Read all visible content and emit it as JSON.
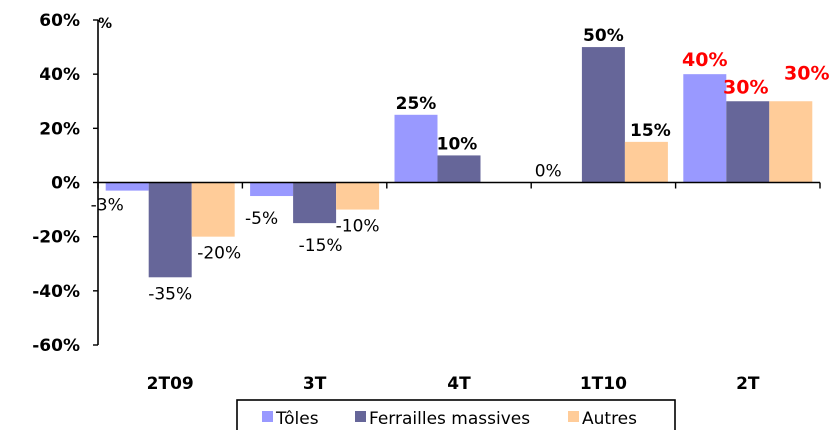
{
  "chart_data": {
    "type": "bar",
    "ylabel": "%",
    "ylim": [
      -60,
      60
    ],
    "yticks": [
      60,
      40,
      20,
      0,
      -20,
      -40,
      -60
    ],
    "ytick_labels": [
      "60%",
      "40%",
      "20%",
      "0%",
      "-20%",
      "-40%",
      "-60%"
    ],
    "grid": false,
    "legend_position": "bottom",
    "categories": [
      "2T09",
      "3T",
      "4T",
      "1T10",
      "2T"
    ],
    "series": [
      {
        "name": "Tôles",
        "color": "#9999FF",
        "values": [
          -3,
          -5,
          25,
          0,
          40
        ],
        "labels": [
          "-3%",
          "-5%",
          "25%",
          "0%",
          "40%"
        ]
      },
      {
        "name": "Ferrailles massives",
        "color": "#666699",
        "values": [
          -35,
          -15,
          10,
          50,
          30
        ],
        "labels": [
          "-35%",
          "-15%",
          "10%",
          "50%",
          "30%"
        ]
      },
      {
        "name": "Autres",
        "color": "#FFCC99",
        "values": [
          -20,
          -10,
          null,
          15,
          30
        ],
        "labels": [
          "-20%",
          "-10%",
          "",
          "15%",
          "30%"
        ]
      }
    ],
    "highlight_category": "2T",
    "highlight_label_color": "#FF0000"
  }
}
